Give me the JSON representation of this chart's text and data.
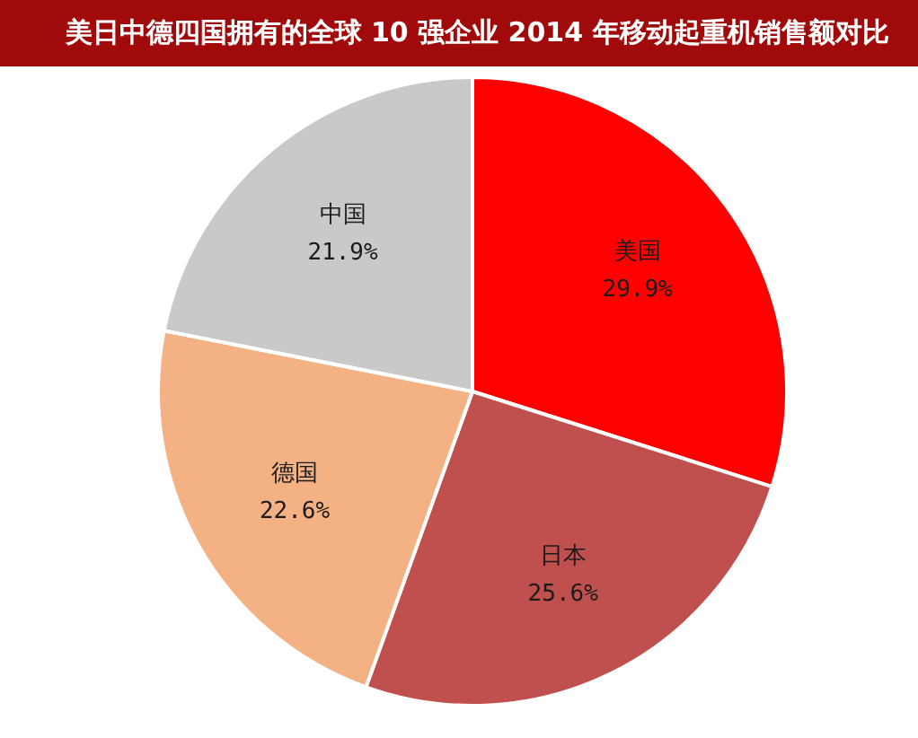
{
  "chart_data": {
    "type": "pie",
    "title": "美日中德四国拥有的全球 10 强企业 2014 年移动起重机销售额对比",
    "categories": [
      "美国",
      "日本",
      "德国",
      "中国"
    ],
    "values": [
      29.9,
      25.6,
      22.6,
      21.9
    ],
    "colors": [
      "#ff0000",
      "#c0504d",
      "#f4b183",
      "#c9c9c9"
    ],
    "value_labels": [
      "29.9%",
      "25.6%",
      "22.6%",
      "21.9%"
    ]
  }
}
